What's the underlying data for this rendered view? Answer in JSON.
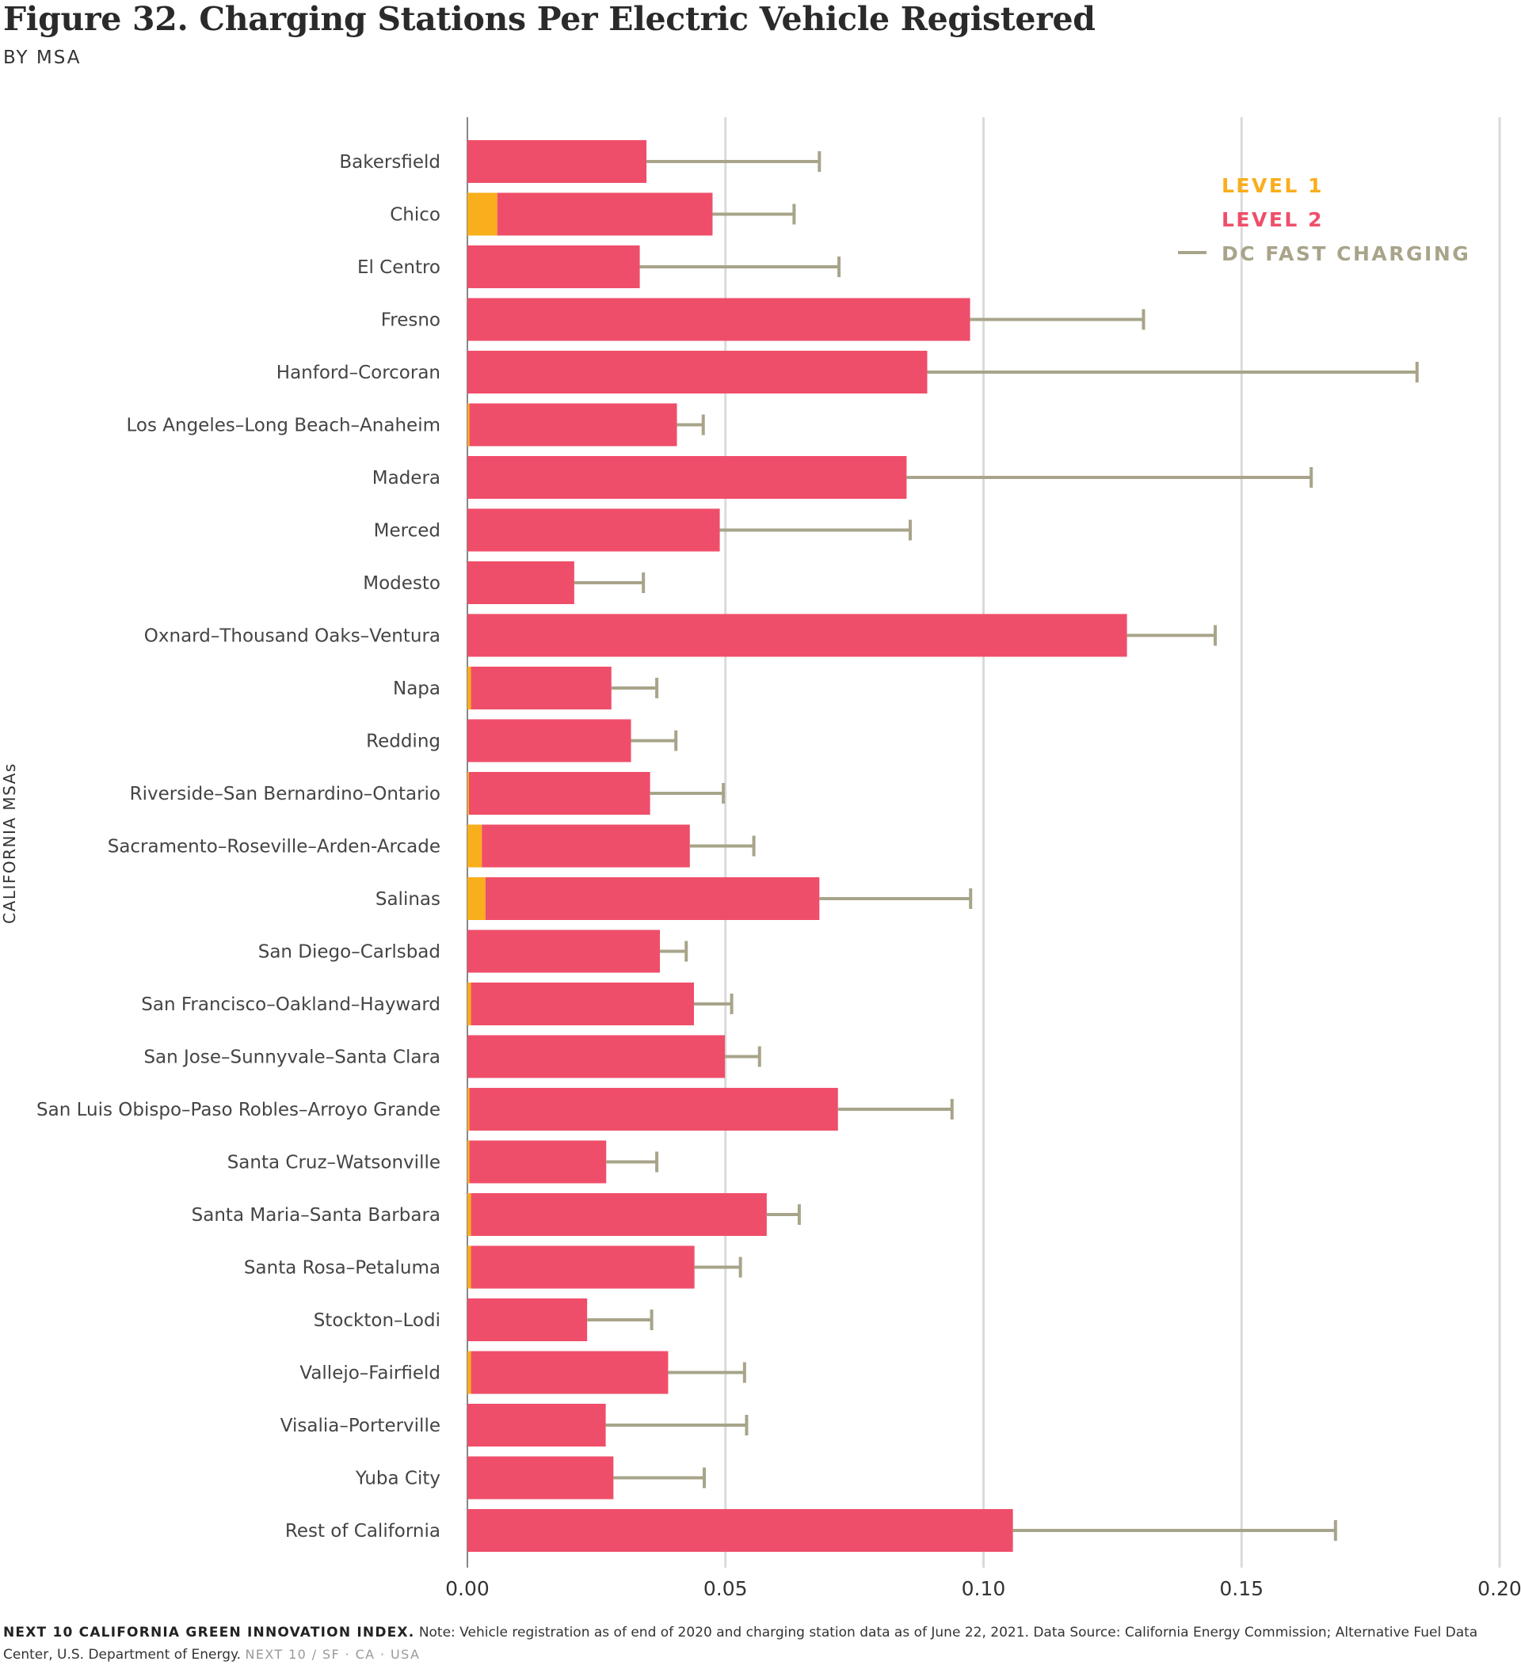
{
  "title": "Figure 32. Charging Stations Per Electric Vehicle Registered",
  "subtitle": "BY MSA",
  "footer": {
    "brand": "NEXT 10 CALIFORNIA GREEN INNOVATION INDEX.",
    "note": "Note: Vehicle registration as of end of 2020 and charging station data as of June 22, 2021. Data Source: California Energy Commission; Alternative Fuel Data Center, U.S. Department of Energy.",
    "tag": "NEXT 10 / SF · CA · USA"
  },
  "colors": {
    "level1": "#F9AE1B",
    "level2": "#EF4E6A",
    "dcfast": "#A8A48A",
    "grid": "#DADADA",
    "axis": "#888888",
    "text": "#444444"
  },
  "chart_data": {
    "type": "bar",
    "orientation": "horizontal",
    "stacked": true,
    "ylabel": "CALIFORNIA MSAs",
    "xlabel": "",
    "xlim": [
      0,
      0.2
    ],
    "xticks": [
      "0.00",
      "0.05",
      "0.10",
      "0.15",
      "0.20"
    ],
    "grid": true,
    "legend_position": "top-right",
    "categories": [
      "Bakersfield",
      "Chico",
      "El Centro",
      "Fresno",
      "Hanford–Corcoran",
      "Los Angeles–Long Beach–Anaheim",
      "Madera",
      "Merced",
      "Modesto",
      "Oxnard–Thousand Oaks–Ventura",
      "Napa",
      "Redding",
      "Riverside–San Bernardino–Ontario",
      "Sacramento–Roseville–Arden-Arcade",
      "Salinas",
      "San Diego–Carlsbad",
      "San Francisco–Oakland–Hayward",
      "San Jose–Sunnyvale–Santa Clara",
      "San Luis Obispo–Paso Robles–Arroyo Grande",
      "Santa Cruz–Watsonville",
      "Santa Maria–Santa Barbara",
      "Santa Rosa–Petaluma",
      "Stockton–Lodi",
      "Vallejo–Fairfield",
      "Visalia–Porterville",
      "Yuba City",
      "Rest of California"
    ],
    "series": [
      {
        "name": "LEVEL 1",
        "kind": "bar",
        "values": [
          0,
          0.0058,
          0,
          0,
          0,
          0.0004,
          0,
          0,
          0,
          0,
          0.0007,
          0,
          0.0003,
          0.0028,
          0.0035,
          0,
          0.0007,
          0,
          0.0004,
          0.0004,
          0.0007,
          0.0007,
          0,
          0.0007,
          0,
          0,
          0
        ]
      },
      {
        "name": "LEVEL 2",
        "kind": "bar",
        "values": [
          0.0347,
          0.0417,
          0.0334,
          0.0974,
          0.0891,
          0.0402,
          0.0851,
          0.0489,
          0.0207,
          0.1278,
          0.0272,
          0.0317,
          0.0351,
          0.0403,
          0.0647,
          0.0373,
          0.0432,
          0.0499,
          0.0714,
          0.0265,
          0.0573,
          0.0433,
          0.0232,
          0.0382,
          0.0268,
          0.0283,
          0.1057
        ]
      },
      {
        "name": "DC FAST CHARGING",
        "kind": "whisker",
        "values": [
          0.0335,
          0.0158,
          0.0386,
          0.0336,
          0.0949,
          0.0051,
          0.0784,
          0.0369,
          0.0134,
          0.0171,
          0.0088,
          0.0087,
          0.0142,
          0.0124,
          0.0293,
          0.0051,
          0.0073,
          0.0067,
          0.0221,
          0.0098,
          0.0063,
          0.0089,
          0.0125,
          0.0148,
          0.0273,
          0.0176,
          0.0625
        ]
      }
    ]
  }
}
